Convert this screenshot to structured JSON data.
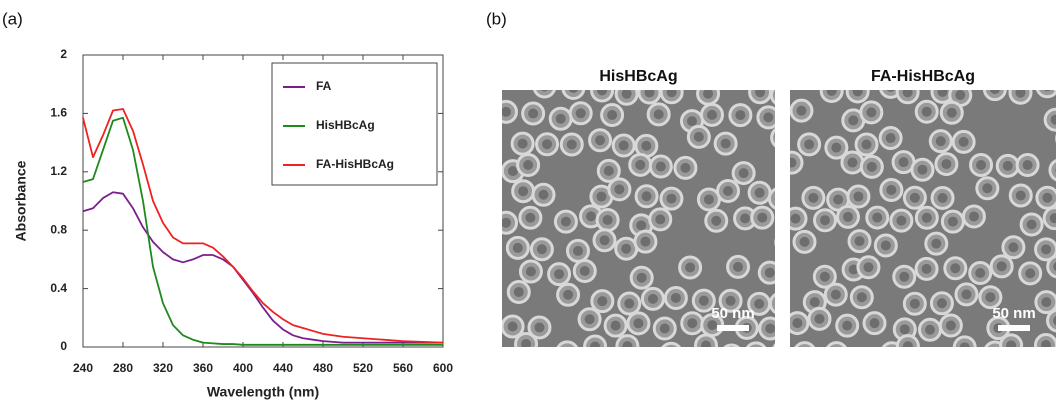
{
  "panel_labels": [
    "(a)",
    "(b)"
  ],
  "chart_data": {
    "type": "line",
    "xlabel": "Wavelength (nm)",
    "ylabel": "Absorbance",
    "x": [
      240,
      250,
      260,
      270,
      280,
      290,
      300,
      310,
      320,
      330,
      340,
      350,
      360,
      370,
      380,
      390,
      400,
      410,
      420,
      430,
      440,
      450,
      460,
      470,
      480,
      500,
      520,
      540,
      560,
      580,
      600
    ],
    "series": [
      {
        "name": "FA",
        "color": "#7b1f8f",
        "values": [
          0.93,
          0.95,
          1.02,
          1.06,
          1.05,
          0.95,
          0.82,
          0.72,
          0.65,
          0.6,
          0.58,
          0.6,
          0.63,
          0.63,
          0.6,
          0.55,
          0.46,
          0.37,
          0.27,
          0.18,
          0.12,
          0.08,
          0.06,
          0.05,
          0.04,
          0.03,
          0.03,
          0.03,
          0.03,
          0.03,
          0.03
        ]
      },
      {
        "name": "HisHBcAg",
        "color": "#1e8a1e",
        "values": [
          1.13,
          1.15,
          1.35,
          1.55,
          1.57,
          1.35,
          1.0,
          0.55,
          0.3,
          0.15,
          0.08,
          0.05,
          0.03,
          0.025,
          0.02,
          0.02,
          0.015,
          0.015,
          0.015,
          0.015,
          0.015,
          0.015,
          0.015,
          0.015,
          0.015,
          0.015,
          0.015,
          0.015,
          0.015,
          0.015,
          0.015
        ]
      },
      {
        "name": "FA-HisHBcAg",
        "color": "#ee2222",
        "values": [
          1.57,
          1.3,
          1.45,
          1.62,
          1.63,
          1.48,
          1.25,
          1.0,
          0.85,
          0.75,
          0.71,
          0.71,
          0.71,
          0.68,
          0.62,
          0.55,
          0.47,
          0.38,
          0.3,
          0.24,
          0.19,
          0.15,
          0.13,
          0.11,
          0.09,
          0.07,
          0.06,
          0.05,
          0.04,
          0.035,
          0.03
        ]
      }
    ],
    "xlim": [
      240,
      600
    ],
    "xticks": [
      240,
      280,
      320,
      360,
      400,
      440,
      480,
      520,
      560,
      600
    ],
    "ylim": [
      0,
      2
    ],
    "yticks": [
      0,
      0.4,
      0.8,
      1.2,
      1.6,
      2
    ],
    "legend": "upper right"
  },
  "images": [
    {
      "title": "HisHBcAg",
      "scale_bar": "50 nm"
    },
    {
      "title": "FA-HisHBcAg",
      "scale_bar": "50 nm"
    }
  ]
}
